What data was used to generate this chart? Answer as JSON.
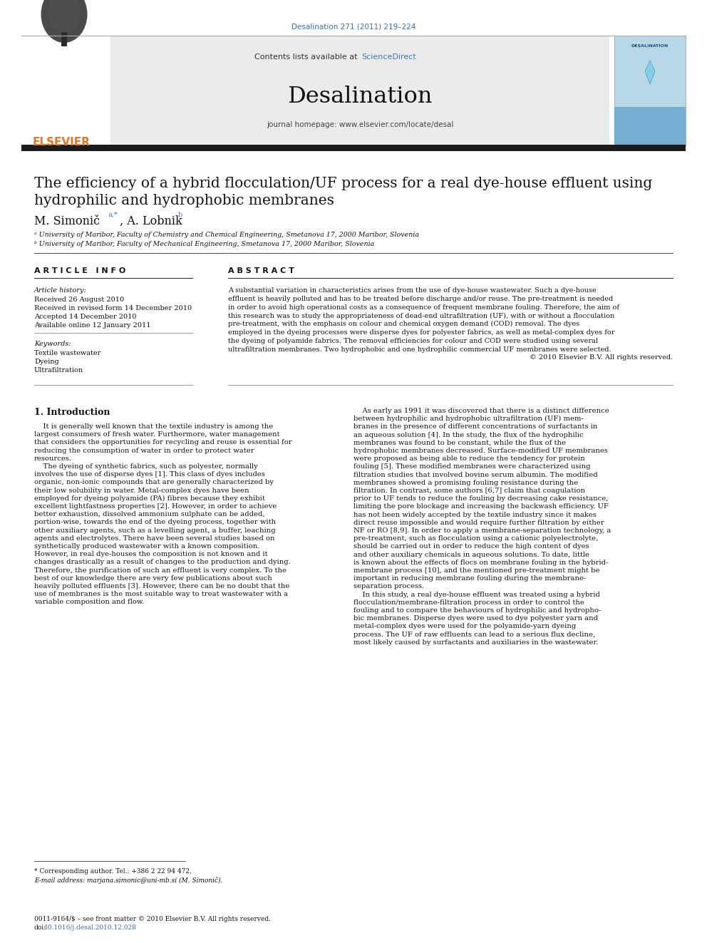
{
  "journal_ref": "Desalination 271 (2011) 219–224",
  "journal_ref_color": "#3a6fad",
  "sciencedirect_color": "#3a7abf",
  "elsevier_orange": "#e87722",
  "journal_name": "Desalination",
  "journal_homepage": "journal homepage: www.elsevier.com/locate/desal",
  "contents_text": "Contents lists available at ",
  "sciencedirect_text": "ScienceDirect",
  "paper_title_line1": "The efficiency of a hybrid flocculation/UF process for a real dye-house effluent using",
  "paper_title_line2": "hydrophilic and hydrophobic membranes",
  "author_main": "M. Simonič",
  "author_super1": "a,*",
  "author2_pre": ", A. Lobnik",
  "author2_super": "b",
  "affil_a": "ᵃ University of Maribor, Faculty of Chemistry and Chemical Engineering, Smetanova 17, 2000 Maribor, Slovenia",
  "affil_b": "ᵇ University of Maribor, Faculty of Mechanical Engineering, Smetanova 17, 2000 Maribor, Slovenia",
  "art_info_header": "A R T I C L E   I N F O",
  "abstract_header": "A B S T R A C T",
  "art_history_label": "Article history:",
  "received1": "Received 26 August 2010",
  "received2": "Received in revised form 14 December 2010",
  "accepted": "Accepted 14 December 2010",
  "available": "Available online 12 January 2011",
  "keywords_label": "Keywords:",
  "kw1": "Textile wastewater",
  "kw2": "Dyeing",
  "kw3": "Ultrafiltration",
  "abstract_lines": [
    "A substantial variation in characteristics arises from the use of dye-house wastewater. Such a dye-house",
    "effluent is heavily polluted and has to be treated before discharge and/or reuse. The pre-treatment is needed",
    "in order to avoid high operational costs as a consequence of frequent membrane fouling. Therefore, the aim of",
    "this research was to study the appropriateness of dead-end ultrafiltration (UF), with or without a flocculation",
    "pre-treatment, with the emphasis on colour and chemical oxygen demand (COD) removal. The dyes",
    "employed in the dyeing processes were disperse dyes for polyester fabrics, as well as metal-complex dyes for",
    "the dyeing of polyamide fabrics. The removal efficiencies for colour and COD were studied using several",
    "ultrafiltration membranes. Two hydrophobic and one hydrophilic commercial UF membranes were selected.",
    "© 2010 Elsevier B.V. All rights reserved."
  ],
  "sec1_title": "1. Introduction",
  "col1_lines": [
    "    It is generally well known that the textile industry is among the",
    "largest consumers of fresh water. Furthermore, water management",
    "that considers the opportunities for recycling and reuse is essential for",
    "reducing the consumption of water in order to protect water",
    "resources.",
    "    The dyeing of synthetic fabrics, such as polyester, normally",
    "involves the use of disperse dyes [1]. This class of dyes includes",
    "organic, non-ionic compounds that are generally characterized by",
    "their low solubility in water. Metal-complex dyes have been",
    "employed for dyeing polyamide (PA) fibres because they exhibit",
    "excellent lightfastness properties [2]. However, in order to achieve",
    "better exhaustion, dissolved ammonium sulphate can be added,",
    "portion-wise, towards the end of the dyeing process, together with",
    "other auxiliary agents, such as a levelling agent, a buffer, leaching",
    "agents and electrolytes. There have been several studies based on",
    "synthetically produced wastewater with a known composition.",
    "However, in real dye-houses the composition is not known and it",
    "changes drastically as a result of changes to the production and dying.",
    "Therefore, the purification of such an effluent is very complex. To the",
    "best of our knowledge there are very few publications about such",
    "heavily polluted effluents [3]. However, there can be no doubt that the",
    "use of membranes is the most suitable way to treat wastewater with a",
    "variable composition and flow."
  ],
  "col2_lines": [
    "    As early as 1991 it was discovered that there is a distinct difference",
    "between hydrophilic and hydrophobic ultrafiltration (UF) mem-",
    "branes in the presence of different concentrations of surfactants in",
    "an aqueous solution [4]. In the study, the flux of the hydrophilic",
    "membranes was found to be constant, while the flux of the",
    "hydrophobic membranes decreased. Surface-modified UF membranes",
    "were proposed as being able to reduce the tendency for protein",
    "fouling [5]. These modified membranes were characterized using",
    "filtration studies that involved bovine serum albumin. The modified",
    "membranes showed a promising fouling resistance during the",
    "filtration. In contrast, some authors [6,7] claim that coagulation",
    "prior to UF tends to reduce the fouling by decreasing cake resistance,",
    "limiting the pore blockage and increasing the backwash efficiency. UF",
    "has not been widely accepted by the textile industry since it makes",
    "direct reuse impossible and would require further filtration by either",
    "NF or RO [8,9]. In order to apply a membrane-separation technology, a",
    "pre-treatment, such as flocculation using a cationic polyelectrolyte,",
    "should be carried out in order to reduce the high content of dyes",
    "and other auxiliary chemicals in aqueous solutions. To date, little",
    "is known about the effects of flocs on membrane fouling in the hybrid-",
    "membrane process [10], and the mentioned pre-treatment might be",
    "important in reducing membrane fouling during the membrane-",
    "separation process.",
    "    In this study, a real dye-house effluent was treated using a hybrid",
    "flocculation/membrane-filtration process in order to control the",
    "fouling and to compare the behaviours of hydrophilic and hydropho-",
    "bic membranes. Disperse dyes were used to dye polyester yarn and",
    "metal-complex dyes were used for the polyamide-yarn dyeing",
    "process. The UF of raw effluents can lead to a serious flux decline,",
    "most likely caused by surfactants and auxiliaries in the wastewater."
  ],
  "footnote_star": "* Corresponding author. Tel.: +386 2 22 94 472.",
  "footnote_email_pre": "E-mail address: marjana.simonic@uni-mb.si (M. Simonič).",
  "footer_issn": "0011-9164/$ – see front matter © 2010 Elsevier B.V. All rights reserved.",
  "footer_doi_pre": "doi:",
  "footer_doi_link": "10.1016/j.desal.2010.12.028",
  "footer_doi_color": "#3a6fad",
  "bg": "#ffffff",
  "header_bg": "#ebebeb",
  "text_black": "#111111",
  "text_dark": "#222222",
  "line_color": "#888888",
  "black_bar": "#1c1c1c"
}
